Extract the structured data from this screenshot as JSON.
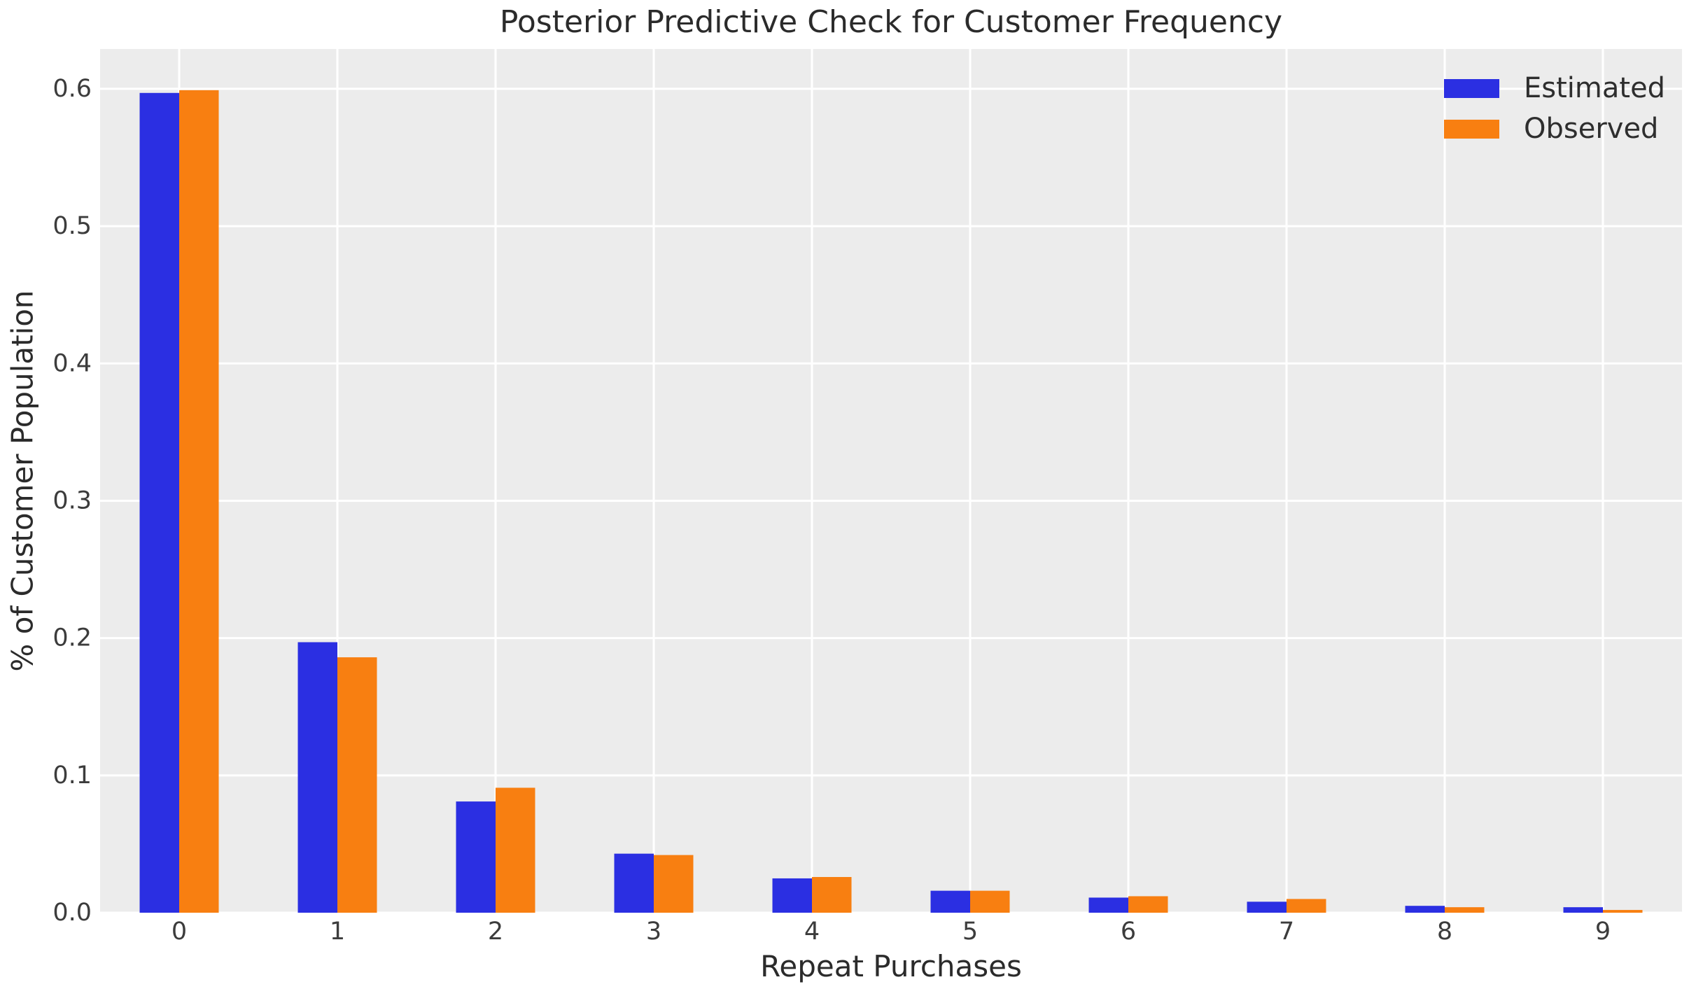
{
  "chart_data": {
    "type": "bar",
    "title": "Posterior Predictive Check for Customer Frequency",
    "xlabel": "Repeat Purchases",
    "ylabel": "% of Customer Population",
    "categories": [
      "0",
      "1",
      "2",
      "3",
      "4",
      "5",
      "6",
      "7",
      "8",
      "9"
    ],
    "series": [
      {
        "name": "Estimated",
        "color": "#2b2fe2",
        "values": [
          0.597,
          0.197,
          0.081,
          0.043,
          0.025,
          0.016,
          0.011,
          0.008,
          0.005,
          0.004
        ]
      },
      {
        "name": "Observed",
        "color": "#f87f11",
        "values": [
          0.599,
          0.186,
          0.091,
          0.042,
          0.026,
          0.016,
          0.012,
          0.01,
          0.004,
          0.002
        ]
      }
    ],
    "yticks": [
      "0.0",
      "0.1",
      "0.2",
      "0.3",
      "0.4",
      "0.5",
      "0.6"
    ],
    "ytick_values": [
      0.0,
      0.1,
      0.2,
      0.3,
      0.4,
      0.5,
      0.6
    ],
    "ylim": [
      0,
      0.629
    ],
    "grid": true,
    "legend_position": "upper right",
    "colors": {
      "plot_bg": "#ececec",
      "grid": "#ffffff",
      "tick_text": "#3c3c3c",
      "label_text": "#2b2b2b"
    }
  }
}
